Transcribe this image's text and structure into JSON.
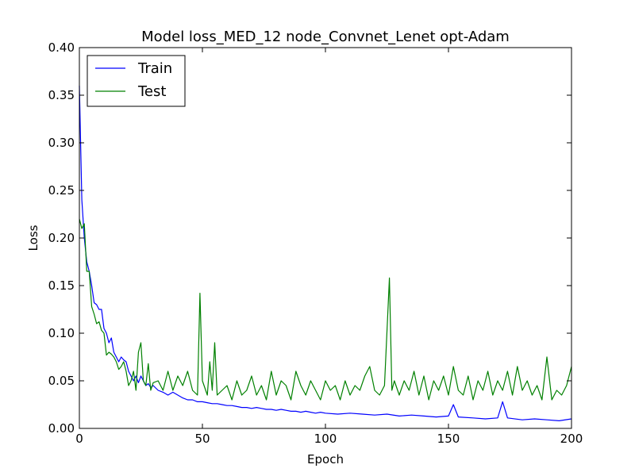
{
  "chart_data": {
    "type": "line",
    "title": "Model loss_MED_12 node_Convnet_Lenet opt-Adam",
    "xlabel": "Epoch",
    "ylabel": "Loss",
    "xlim": [
      0,
      200
    ],
    "ylim": [
      0,
      0.4
    ],
    "xticks": [
      0,
      50,
      100,
      150,
      200
    ],
    "xtick_labels": [
      "0",
      "50",
      "100",
      "150",
      "200"
    ],
    "yticks": [
      0,
      0.05,
      0.1,
      0.15,
      0.2,
      0.25,
      0.3,
      0.35,
      0.4
    ],
    "ytick_labels": [
      "0.00",
      "0.05",
      "0.10",
      "0.15",
      "0.20",
      "0.25",
      "0.30",
      "0.35",
      "0.40"
    ],
    "grid": false,
    "legend_position": "top-left",
    "series": [
      {
        "name": "Train",
        "color": "#0000ff",
        "points": [
          [
            0,
            0.36
          ],
          [
            1,
            0.24
          ],
          [
            2,
            0.2
          ],
          [
            3,
            0.175
          ],
          [
            4,
            0.165
          ],
          [
            5,
            0.15
          ],
          [
            6,
            0.132
          ],
          [
            7,
            0.13
          ],
          [
            8,
            0.125
          ],
          [
            9,
            0.125
          ],
          [
            10,
            0.105
          ],
          [
            11,
            0.1
          ],
          [
            12,
            0.09
          ],
          [
            13,
            0.095
          ],
          [
            14,
            0.08
          ],
          [
            15,
            0.075
          ],
          [
            16,
            0.07
          ],
          [
            17,
            0.075
          ],
          [
            18,
            0.072
          ],
          [
            19,
            0.07
          ],
          [
            20,
            0.06
          ],
          [
            21,
            0.055
          ],
          [
            22,
            0.05
          ],
          [
            23,
            0.055
          ],
          [
            24,
            0.048
          ],
          [
            25,
            0.055
          ],
          [
            26,
            0.05
          ],
          [
            27,
            0.045
          ],
          [
            28,
            0.047
          ],
          [
            29,
            0.043
          ],
          [
            30,
            0.045
          ],
          [
            32,
            0.04
          ],
          [
            34,
            0.038
          ],
          [
            36,
            0.035
          ],
          [
            38,
            0.038
          ],
          [
            40,
            0.035
          ],
          [
            42,
            0.032
          ],
          [
            44,
            0.03
          ],
          [
            46,
            0.03
          ],
          [
            48,
            0.028
          ],
          [
            50,
            0.028
          ],
          [
            52,
            0.027
          ],
          [
            54,
            0.026
          ],
          [
            56,
            0.026
          ],
          [
            58,
            0.025
          ],
          [
            60,
            0.024
          ],
          [
            62,
            0.024
          ],
          [
            64,
            0.023
          ],
          [
            66,
            0.022
          ],
          [
            68,
            0.022
          ],
          [
            70,
            0.021
          ],
          [
            72,
            0.022
          ],
          [
            74,
            0.021
          ],
          [
            76,
            0.02
          ],
          [
            78,
            0.02
          ],
          [
            80,
            0.019
          ],
          [
            82,
            0.02
          ],
          [
            84,
            0.019
          ],
          [
            86,
            0.018
          ],
          [
            88,
            0.018
          ],
          [
            90,
            0.017
          ],
          [
            92,
            0.018
          ],
          [
            94,
            0.017
          ],
          [
            96,
            0.016
          ],
          [
            98,
            0.017
          ],
          [
            100,
            0.016
          ],
          [
            105,
            0.015
          ],
          [
            110,
            0.016
          ],
          [
            115,
            0.015
          ],
          [
            120,
            0.014
          ],
          [
            125,
            0.015
          ],
          [
            130,
            0.013
          ],
          [
            135,
            0.014
          ],
          [
            140,
            0.013
          ],
          [
            145,
            0.012
          ],
          [
            150,
            0.013
          ],
          [
            152,
            0.025
          ],
          [
            154,
            0.012
          ],
          [
            160,
            0.011
          ],
          [
            165,
            0.01
          ],
          [
            170,
            0.011
          ],
          [
            172,
            0.028
          ],
          [
            174,
            0.011
          ],
          [
            180,
            0.009
          ],
          [
            185,
            0.01
          ],
          [
            190,
            0.009
          ],
          [
            195,
            0.008
          ],
          [
            200,
            0.01
          ]
        ]
      },
      {
        "name": "Test",
        "color": "#008000",
        "points": [
          [
            0,
            0.22
          ],
          [
            1,
            0.21
          ],
          [
            2,
            0.215
          ],
          [
            3,
            0.165
          ],
          [
            4,
            0.165
          ],
          [
            5,
            0.128
          ],
          [
            6,
            0.12
          ],
          [
            7,
            0.11
          ],
          [
            8,
            0.112
          ],
          [
            9,
            0.103
          ],
          [
            10,
            0.1
          ],
          [
            11,
            0.077
          ],
          [
            12,
            0.08
          ],
          [
            13,
            0.078
          ],
          [
            14,
            0.075
          ],
          [
            15,
            0.07
          ],
          [
            16,
            0.062
          ],
          [
            17,
            0.065
          ],
          [
            18,
            0.07
          ],
          [
            19,
            0.06
          ],
          [
            20,
            0.045
          ],
          [
            21,
            0.05
          ],
          [
            22,
            0.06
          ],
          [
            23,
            0.04
          ],
          [
            24,
            0.08
          ],
          [
            25,
            0.09
          ],
          [
            26,
            0.05
          ],
          [
            27,
            0.045
          ],
          [
            28,
            0.068
          ],
          [
            29,
            0.04
          ],
          [
            30,
            0.048
          ],
          [
            32,
            0.05
          ],
          [
            34,
            0.04
          ],
          [
            36,
            0.06
          ],
          [
            38,
            0.04
          ],
          [
            40,
            0.055
          ],
          [
            42,
            0.045
          ],
          [
            44,
            0.06
          ],
          [
            46,
            0.04
          ],
          [
            48,
            0.035
          ],
          [
            49,
            0.142
          ],
          [
            50,
            0.05
          ],
          [
            52,
            0.035
          ],
          [
            53,
            0.07
          ],
          [
            54,
            0.04
          ],
          [
            55,
            0.09
          ],
          [
            56,
            0.035
          ],
          [
            58,
            0.04
          ],
          [
            60,
            0.045
          ],
          [
            62,
            0.03
          ],
          [
            64,
            0.05
          ],
          [
            66,
            0.035
          ],
          [
            68,
            0.04
          ],
          [
            70,
            0.055
          ],
          [
            72,
            0.035
          ],
          [
            74,
            0.045
          ],
          [
            76,
            0.03
          ],
          [
            78,
            0.06
          ],
          [
            80,
            0.035
          ],
          [
            82,
            0.05
          ],
          [
            84,
            0.045
          ],
          [
            86,
            0.03
          ],
          [
            88,
            0.06
          ],
          [
            90,
            0.045
          ],
          [
            92,
            0.035
          ],
          [
            94,
            0.05
          ],
          [
            96,
            0.04
          ],
          [
            98,
            0.03
          ],
          [
            100,
            0.05
          ],
          [
            102,
            0.04
          ],
          [
            104,
            0.045
          ],
          [
            106,
            0.03
          ],
          [
            108,
            0.05
          ],
          [
            110,
            0.035
          ],
          [
            112,
            0.045
          ],
          [
            114,
            0.04
          ],
          [
            116,
            0.055
          ],
          [
            118,
            0.065
          ],
          [
            120,
            0.04
          ],
          [
            122,
            0.035
          ],
          [
            124,
            0.045
          ],
          [
            126,
            0.158
          ],
          [
            127,
            0.04
          ],
          [
            128,
            0.05
          ],
          [
            130,
            0.035
          ],
          [
            132,
            0.05
          ],
          [
            134,
            0.04
          ],
          [
            136,
            0.06
          ],
          [
            138,
            0.035
          ],
          [
            140,
            0.055
          ],
          [
            142,
            0.03
          ],
          [
            144,
            0.05
          ],
          [
            146,
            0.04
          ],
          [
            148,
            0.055
          ],
          [
            150,
            0.035
          ],
          [
            152,
            0.065
          ],
          [
            154,
            0.04
          ],
          [
            156,
            0.035
          ],
          [
            158,
            0.055
          ],
          [
            160,
            0.03
          ],
          [
            162,
            0.05
          ],
          [
            164,
            0.04
          ],
          [
            166,
            0.06
          ],
          [
            168,
            0.035
          ],
          [
            170,
            0.05
          ],
          [
            172,
            0.04
          ],
          [
            174,
            0.06
          ],
          [
            176,
            0.035
          ],
          [
            178,
            0.065
          ],
          [
            180,
            0.04
          ],
          [
            182,
            0.05
          ],
          [
            184,
            0.035
          ],
          [
            186,
            0.045
          ],
          [
            188,
            0.03
          ],
          [
            190,
            0.075
          ],
          [
            192,
            0.03
          ],
          [
            194,
            0.04
          ],
          [
            196,
            0.035
          ],
          [
            198,
            0.045
          ],
          [
            200,
            0.065
          ]
        ]
      }
    ]
  }
}
